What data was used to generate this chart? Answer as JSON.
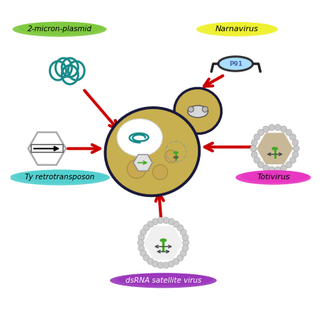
{
  "labels": {
    "plasmid": "2-micron-plasmid",
    "narnavirus": "Narnavirus",
    "ty": "Ty retrotransposon",
    "totivirus": "Totivirus",
    "dsrna": "dsRNA satellite virus",
    "p91": "P91"
  },
  "colors": {
    "plasmid_bg": "#7cc83a",
    "narnavirus_bg": "#eef02a",
    "ty_bg": "#4ecece",
    "totivirus_bg": "#e832c0",
    "dsrna_bg": "#9933bb",
    "teal": "#1a8a8a",
    "cell_fill": "#c8b050",
    "cell_outline": "#1a1a3a",
    "arrow_red": "#cc0000",
    "p91_fill": "#aaddff",
    "green_element": "#44aa22",
    "hex_gray": "#aaaaaa",
    "hex_tan": "#c8b898"
  },
  "figsize": [
    4.74,
    4.46
  ],
  "dpi": 100
}
